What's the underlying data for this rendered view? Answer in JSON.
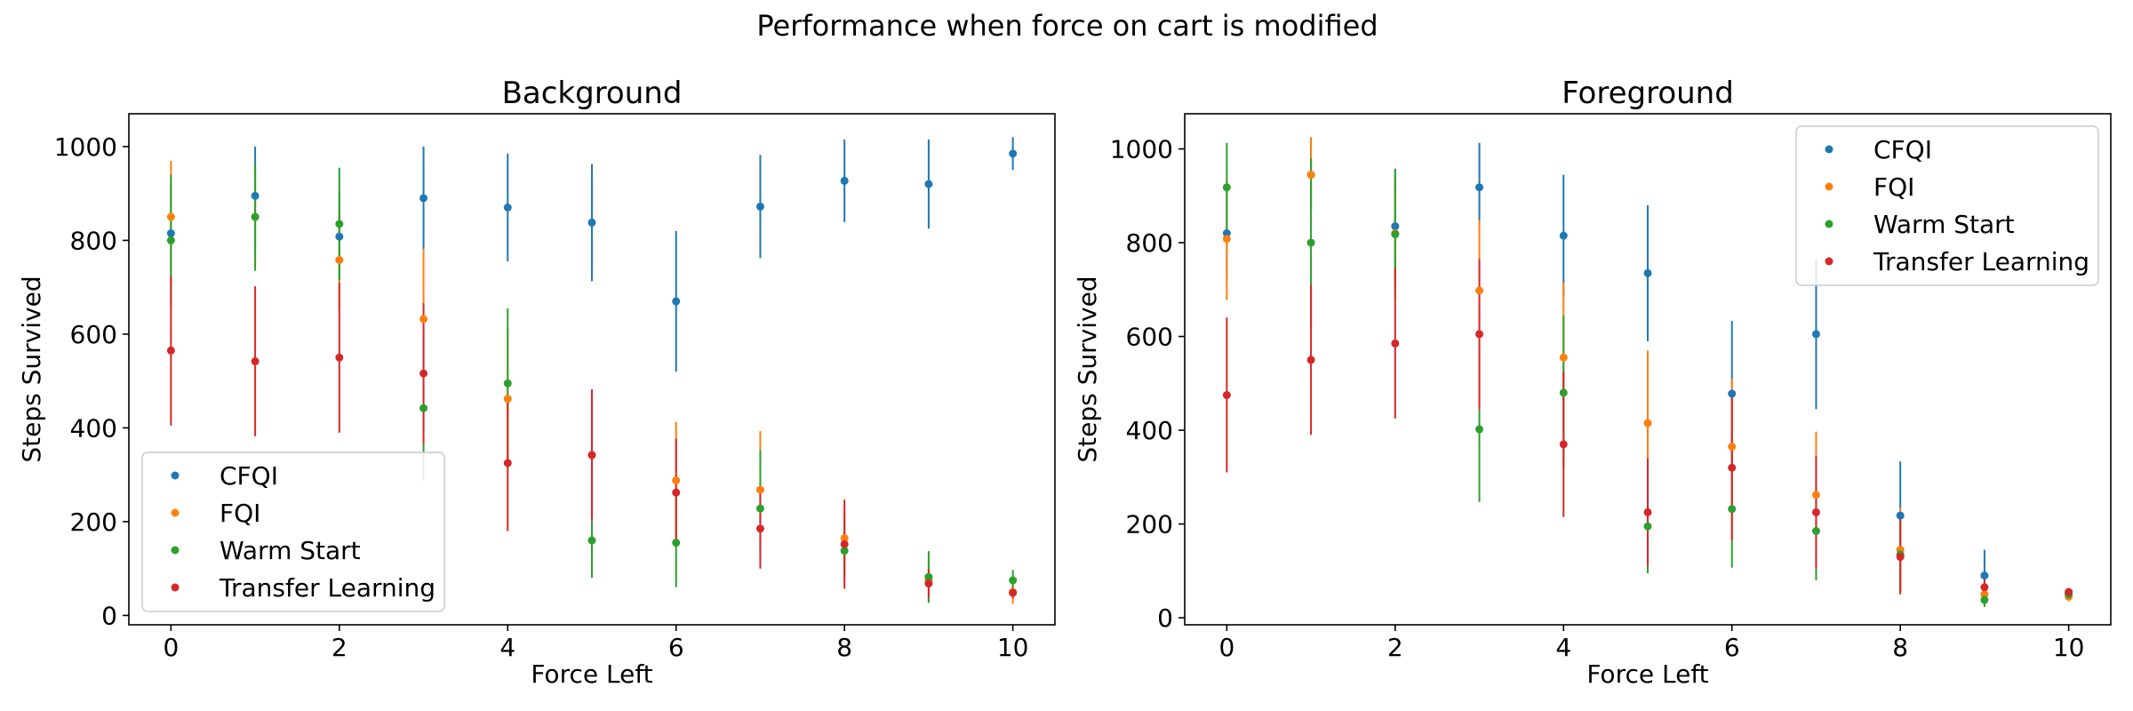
{
  "figure": {
    "suptitle": "Performance when force on cart is modified"
  },
  "chart_data": [
    {
      "type": "scatter",
      "title": "Background",
      "xlabel": "Force Left",
      "ylabel": "Steps Survived",
      "xlim": [
        -0.5,
        10.5
      ],
      "ylim": [
        -20,
        1070
      ],
      "xticks": [
        0,
        2,
        4,
        6,
        8,
        10
      ],
      "yticks": [
        0,
        200,
        400,
        600,
        800,
        1000
      ],
      "grid": false,
      "legend_loc": "lower-left",
      "error_bars": true,
      "series": [
        {
          "name": "CFQI",
          "color": "#1f77b4",
          "x": [
            0,
            1,
            2,
            3,
            4,
            5,
            6,
            7,
            8,
            9,
            10
          ],
          "y": [
            815,
            895,
            808,
            890,
            870,
            838,
            670,
            872,
            927,
            920,
            985
          ],
          "err": [
            115,
            105,
            95,
            110,
            115,
            125,
            150,
            110,
            88,
            95,
            35
          ]
        },
        {
          "name": "FQI",
          "color": "#ff7f0e",
          "x": [
            0,
            1,
            2,
            3,
            4,
            5,
            6,
            7,
            8,
            9,
            10
          ],
          "y": [
            850,
            850,
            758,
            632,
            462,
            342,
            288,
            268,
            165,
            75,
            50
          ],
          "err": [
            120,
            105,
            105,
            150,
            150,
            140,
            125,
            125,
            60,
            45,
            25
          ]
        },
        {
          "name": "Warm Start",
          "color": "#2ca02c",
          "x": [
            0,
            1,
            2,
            3,
            4,
            5,
            6,
            7,
            8,
            9,
            10
          ],
          "y": [
            800,
            850,
            835,
            442,
            495,
            160,
            155,
            228,
            138,
            82,
            75
          ],
          "err": [
            140,
            115,
            120,
            155,
            160,
            80,
            95,
            125,
            60,
            55,
            22
          ]
        },
        {
          "name": "Transfer Learning",
          "color": "#d62728",
          "x": [
            0,
            1,
            2,
            3,
            4,
            5,
            6,
            7,
            8,
            9,
            10
          ],
          "y": [
            565,
            542,
            550,
            516,
            325,
            342,
            262,
            185,
            152,
            68,
            48
          ],
          "err": [
            160,
            160,
            160,
            150,
            145,
            140,
            115,
            85,
            95,
            30,
            12
          ]
        }
      ]
    },
    {
      "type": "scatter",
      "title": "Foreground",
      "xlabel": "Force Left",
      "ylabel": "Steps Survived",
      "xlim": [
        -0.5,
        10.5
      ],
      "ylim": [
        -15,
        1075
      ],
      "xticks": [
        0,
        2,
        4,
        6,
        8,
        10
      ],
      "yticks": [
        0,
        200,
        400,
        600,
        800,
        1000
      ],
      "grid": false,
      "legend_loc": "upper-right",
      "error_bars": true,
      "series": [
        {
          "name": "CFQI",
          "color": "#1f77b4",
          "x": [
            0,
            1,
            2,
            3,
            4,
            5,
            6,
            7,
            8,
            9,
            10
          ],
          "y": [
            820,
            945,
            835,
            918,
            815,
            735,
            478,
            605,
            218,
            90,
            50
          ],
          "err": [
            100,
            80,
            120,
            95,
            130,
            145,
            155,
            160,
            115,
            55,
            10
          ]
        },
        {
          "name": "FQI",
          "color": "#ff7f0e",
          "x": [
            0,
            1,
            2,
            3,
            4,
            5,
            6,
            7,
            8,
            9,
            10
          ],
          "y": [
            808,
            945,
            820,
            698,
            555,
            415,
            365,
            262,
            145,
            50,
            45
          ],
          "err": [
            130,
            80,
            120,
            150,
            160,
            155,
            145,
            135,
            90,
            25,
            10
          ]
        },
        {
          "name": "Warm Start",
          "color": "#2ca02c",
          "x": [
            0,
            1,
            2,
            3,
            4,
            5,
            6,
            7,
            8,
            9,
            10
          ],
          "y": [
            918,
            800,
            818,
            402,
            480,
            195,
            232,
            185,
            135,
            38,
            50
          ],
          "err": [
            95,
            180,
            140,
            155,
            165,
            100,
            125,
            105,
            80,
            15,
            10
          ]
        },
        {
          "name": "Transfer Learning",
          "color": "#d62728",
          "x": [
            0,
            1,
            2,
            3,
            4,
            5,
            6,
            7,
            8,
            9,
            10
          ],
          "y": [
            475,
            550,
            585,
            605,
            370,
            225,
            320,
            225,
            130,
            65,
            55
          ],
          "err": [
            165,
            160,
            160,
            160,
            155,
            115,
            155,
            120,
            80,
            18,
            8
          ]
        }
      ]
    }
  ]
}
